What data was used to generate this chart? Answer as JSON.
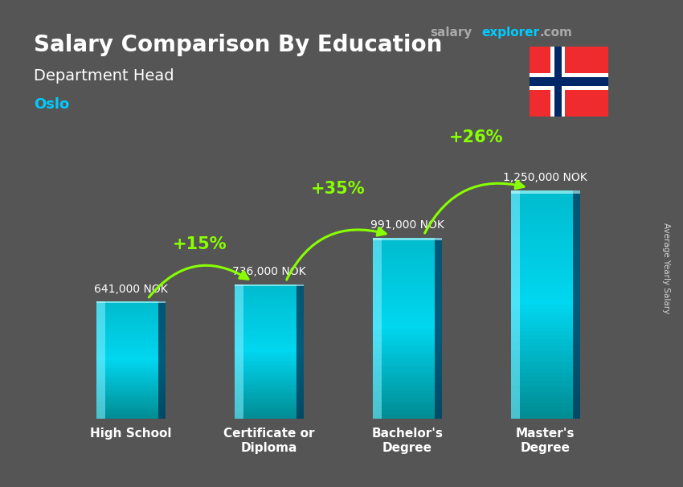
{
  "title": "Salary Comparison By Education",
  "subtitle": "Department Head",
  "city": "Oslo",
  "ylabel": "Average Yearly Salary",
  "categories": [
    "High School",
    "Certificate or\nDiploma",
    "Bachelor's\nDegree",
    "Master's\nDegree"
  ],
  "values": [
    641000,
    736000,
    991000,
    1250000
  ],
  "value_labels": [
    "641,000 NOK",
    "736,000 NOK",
    "991,000 NOK",
    "1,250,000 NOK"
  ],
  "pct_labels": [
    "+15%",
    "+35%",
    "+26%"
  ],
  "bar_color_main": "#1bc8f0",
  "bar_color_light": "#55ddff",
  "bar_color_dark": "#0088bb",
  "bar_color_side": "#005577",
  "background_color": "#555555",
  "title_color": "#ffffff",
  "subtitle_color": "#ffffff",
  "city_color": "#00ccff",
  "value_color": "#ffffff",
  "pct_color": "#88ff00",
  "arrow_color": "#88ff00",
  "watermark_salary_color": "#aaaaaa",
  "watermark_explorer_color": "#00ccff",
  "watermark_com_color": "#aaaaaa",
  "flag_red": "#EF2B2D",
  "flag_blue": "#002868",
  "flag_white": "#ffffff",
  "ylim": [
    0,
    1600000
  ],
  "bar_width": 0.5
}
